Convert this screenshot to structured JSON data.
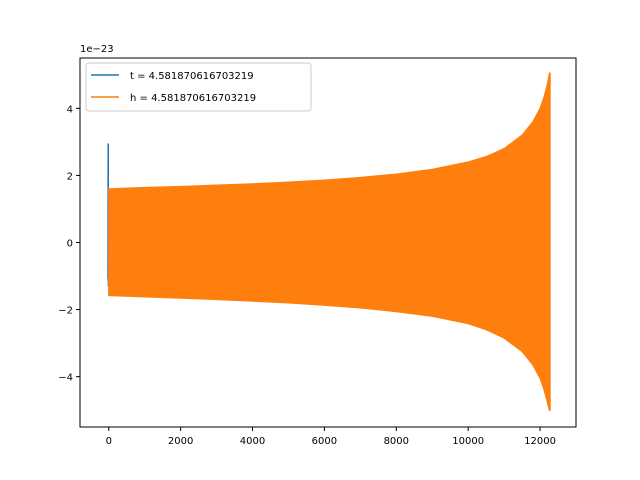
{
  "chart_data": {
    "type": "line",
    "offset_text": "1e−23",
    "y_scale_exponent": -23,
    "xlim": [
      -800,
      13000
    ],
    "ylim": [
      -5.5,
      5.5
    ],
    "x_ticks": [
      0,
      2000,
      4000,
      6000,
      8000,
      10000,
      12000
    ],
    "x_tick_labels": [
      "0",
      "2000",
      "4000",
      "6000",
      "8000",
      "10000",
      "12000"
    ],
    "y_ticks": [
      -4,
      -2,
      0,
      2,
      4
    ],
    "y_tick_labels": [
      "−4",
      "−2",
      "0",
      "2",
      "4"
    ],
    "legend_position": "upper-left",
    "series": [
      {
        "name": "t = 4.581870616703219",
        "color": "#1f77b4",
        "spike_points": [
          [
            -20,
            -1.1
          ],
          [
            -15,
            2.95
          ],
          [
            -10,
            -1.3
          ],
          [
            0,
            1.6
          ],
          [
            10,
            -1.58
          ]
        ]
      },
      {
        "name": "h = 4.581870616703219",
        "color": "#ff7f0e",
        "envelope": {
          "x": [
            0,
            1000,
            2000,
            3000,
            4000,
            5000,
            6000,
            7000,
            8000,
            9000,
            10000,
            10500,
            11000,
            11500,
            11800,
            12000,
            12100,
            12200,
            12260,
            12280
          ],
          "upper": [
            1.6,
            1.64,
            1.67,
            1.71,
            1.75,
            1.8,
            1.86,
            1.94,
            2.04,
            2.18,
            2.4,
            2.56,
            2.8,
            3.2,
            3.6,
            4.0,
            4.3,
            4.7,
            5.05,
            5.05
          ],
          "lower": [
            -1.58,
            -1.62,
            -1.66,
            -1.7,
            -1.75,
            -1.8,
            -1.87,
            -1.95,
            -2.06,
            -2.2,
            -2.42,
            -2.6,
            -2.85,
            -3.25,
            -3.65,
            -4.05,
            -4.35,
            -4.75,
            -5.0,
            -5.0
          ]
        }
      }
    ]
  }
}
